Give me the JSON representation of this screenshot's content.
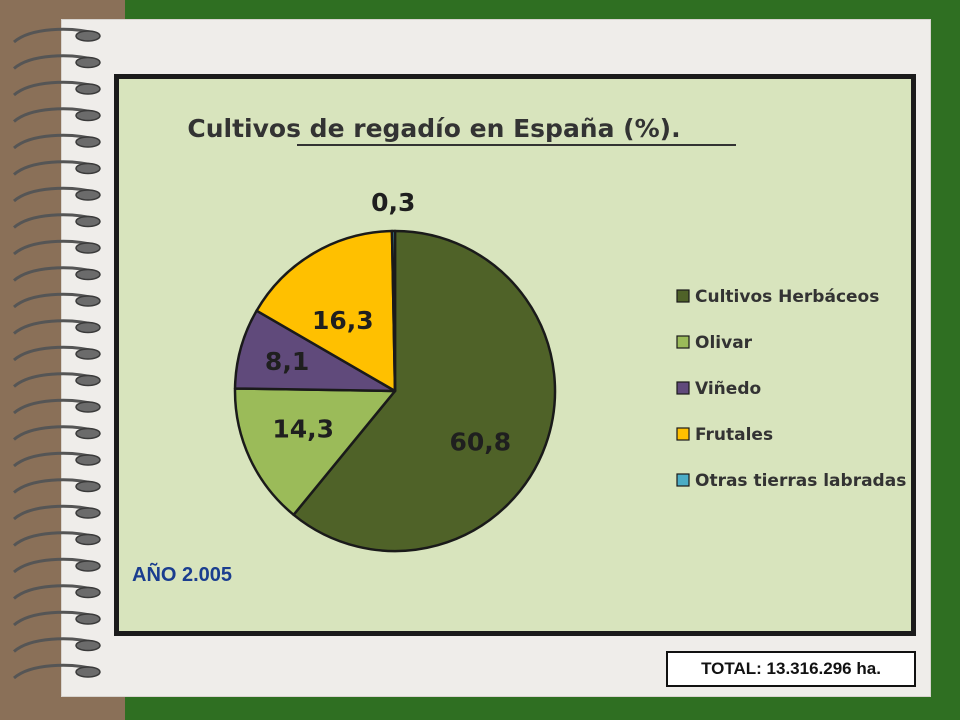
{
  "chart_data": {
    "type": "pie",
    "title": "Cultivos de regadío en España (%).",
    "categories": [
      "Cultivos Herbáceos",
      "Olivar",
      "Viñedo",
      "Frutales",
      "Otras tierras labradas"
    ],
    "values": [
      60.8,
      14.3,
      8.1,
      16.3,
      0.3
    ],
    "data_labels": [
      "60,8",
      "14,3",
      "8,1",
      "16,3",
      "0,3"
    ],
    "colors": [
      "#4f6228",
      "#9bbb59",
      "#604a7b",
      "#ffc000",
      "#4bacc6"
    ],
    "legend_position": "right"
  },
  "annotations": {
    "year": "AÑO 2.005",
    "total": "TOTAL: 13.316.296 ha."
  }
}
